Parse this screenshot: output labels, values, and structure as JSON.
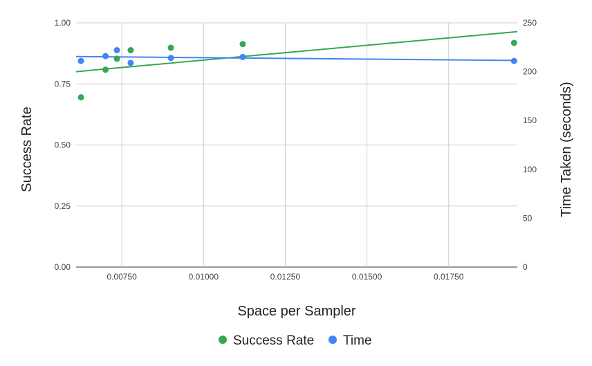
{
  "chart_data": {
    "type": "scatter",
    "xlabel": "Space per Sampler",
    "ylabel_left": "Success Rate",
    "ylabel_right": "Time Taken (seconds)",
    "xlim": [
      0.0061,
      0.0196
    ],
    "ylim_left": [
      0,
      1
    ],
    "ylim_right": [
      0,
      250
    ],
    "x_ticks": [
      "0.00750",
      "0.01000",
      "0.01250",
      "0.01500",
      "0.01750"
    ],
    "x_tick_values": [
      0.0075,
      0.01,
      0.0125,
      0.015,
      0.0175
    ],
    "y_left_ticks": [
      "0.00",
      "0.25",
      "0.50",
      "0.75",
      "1.00"
    ],
    "y_left_tick_values": [
      0,
      0.25,
      0.5,
      0.75,
      1.0
    ],
    "y_right_ticks": [
      "0",
      "50",
      "100",
      "150",
      "200",
      "250"
    ],
    "y_right_tick_values": [
      0,
      50,
      100,
      150,
      200,
      250
    ],
    "grid": true,
    "legend_position": "bottom",
    "series": [
      {
        "name": "Success Rate",
        "axis": "left",
        "color": "#34a853",
        "x": [
          0.00625,
          0.007,
          0.00735,
          0.00777,
          0.009,
          0.0112,
          0.0195
        ],
        "y": [
          0.695,
          0.808,
          0.853,
          0.888,
          0.898,
          0.913,
          0.918
        ],
        "trendline": {
          "x": [
            0.0061,
            0.0196
          ],
          "y": [
            0.8,
            0.964
          ]
        }
      },
      {
        "name": "Time",
        "axis": "right",
        "color": "#4285f4",
        "x": [
          0.00625,
          0.007,
          0.00735,
          0.00777,
          0.009,
          0.0112,
          0.0195
        ],
        "y": [
          211,
          216,
          222,
          209,
          214,
          215,
          211
        ],
        "trendline": {
          "x": [
            0.0061,
            0.0196
          ],
          "y": [
            215.5,
            211.5
          ]
        }
      }
    ]
  }
}
